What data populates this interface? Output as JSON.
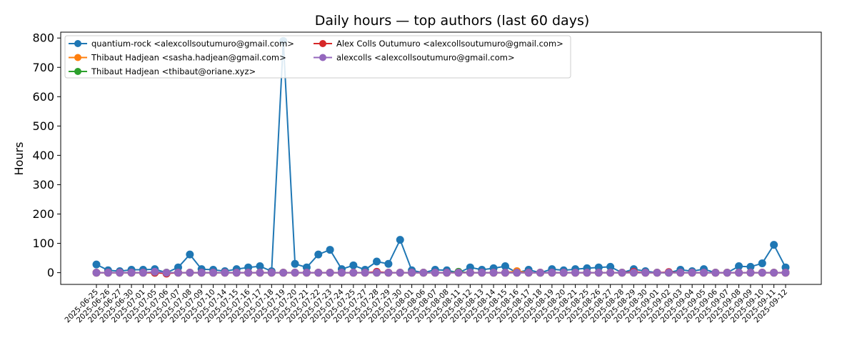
{
  "chart_data": {
    "type": "line",
    "title": "Daily hours — top authors (last 60 days)",
    "xlabel": "",
    "ylabel": "Hours",
    "ylim": [
      -40,
      820
    ],
    "yticks": [
      0,
      100,
      200,
      300,
      400,
      500,
      600,
      700,
      800
    ],
    "grid": false,
    "legend_position": "top-left",
    "legend_columns": 2,
    "x": [
      "2025-06-25",
      "2025-06-26",
      "2025-06-27",
      "2025-06-30",
      "2025-07-01",
      "2025-07-05",
      "2025-07-06",
      "2025-07-07",
      "2025-07-08",
      "2025-07-09",
      "2025-07-10",
      "2025-07-14",
      "2025-07-15",
      "2025-07-16",
      "2025-07-17",
      "2025-07-18",
      "2025-07-19",
      "2025-07-20",
      "2025-07-21",
      "2025-07-22",
      "2025-07-23",
      "2025-07-24",
      "2025-07-25",
      "2025-07-27",
      "2025-07-28",
      "2025-07-29",
      "2025-07-30",
      "2025-08-01",
      "2025-08-06",
      "2025-08-07",
      "2025-08-08",
      "2025-08-11",
      "2025-08-12",
      "2025-08-13",
      "2025-08-14",
      "2025-08-15",
      "2025-08-16",
      "2025-08-17",
      "2025-08-18",
      "2025-08-19",
      "2025-08-20",
      "2025-08-21",
      "2025-08-25",
      "2025-08-26",
      "2025-08-27",
      "2025-08-28",
      "2025-08-29",
      "2025-08-30",
      "2025-09-01",
      "2025-09-02",
      "2025-09-03",
      "2025-09-04",
      "2025-09-05",
      "2025-09-06",
      "2025-09-07",
      "2025-09-08",
      "2025-09-09",
      "2025-09-10",
      "2025-09-11",
      "2025-09-12"
    ],
    "series": [
      {
        "name": "quantium-rock <alexcollsoutumuro@gmail.com>",
        "color": "#1f77b4",
        "values": [
          28,
          8,
          5,
          10,
          10,
          12,
          0,
          18,
          62,
          12,
          10,
          5,
          12,
          18,
          22,
          5,
          790,
          30,
          18,
          62,
          78,
          12,
          25,
          10,
          38,
          30,
          112,
          8,
          0,
          10,
          8,
          0,
          18,
          10,
          15,
          22,
          0,
          10,
          0,
          12,
          8,
          12,
          15,
          18,
          20,
          0,
          12,
          5,
          0,
          0,
          10,
          5,
          12,
          0,
          0,
          22,
          20,
          32,
          95,
          18
        ]
      },
      {
        "name": "Thibaut Hadjean <sasha.hadjean@gmail.com>",
        "color": "#ff7f0e",
        "values": [
          0,
          0,
          0,
          0,
          0,
          0,
          0,
          0,
          0,
          0,
          0,
          0,
          0,
          0,
          0,
          0,
          0,
          0,
          0,
          0,
          0,
          0,
          0,
          0,
          0,
          0,
          0,
          0,
          0,
          0,
          0,
          0,
          0,
          0,
          0,
          0,
          5,
          0,
          0,
          0,
          0,
          0,
          0,
          0,
          0,
          0,
          0,
          0,
          0,
          0,
          0,
          0,
          0,
          0,
          0,
          0,
          0,
          0,
          0,
          0
        ]
      },
      {
        "name": "Thibaut Hadjean <thibaut@oriane.xyz>",
        "color": "#2ca02c",
        "values": [
          0,
          0,
          0,
          0,
          0,
          0,
          0,
          0,
          0,
          0,
          0,
          0,
          0,
          0,
          0,
          0,
          0,
          0,
          0,
          0,
          0,
          0,
          0,
          0,
          0,
          0,
          0,
          0,
          0,
          0,
          0,
          3,
          0,
          0,
          0,
          0,
          0,
          0,
          0,
          0,
          0,
          0,
          0,
          0,
          0,
          0,
          0,
          0,
          0,
          0,
          0,
          0,
          0,
          0,
          0,
          0,
          0,
          0,
          0,
          0
        ]
      },
      {
        "name": "Alex Colls Outumuro <alexcollsoutumuro@gmail.com>",
        "color": "#d62728",
        "values": [
          0,
          0,
          0,
          0,
          0,
          0,
          -3,
          0,
          0,
          0,
          0,
          0,
          0,
          0,
          0,
          0,
          0,
          0,
          0,
          0,
          0,
          0,
          0,
          0,
          3,
          0,
          0,
          0,
          0,
          0,
          0,
          0,
          0,
          0,
          0,
          0,
          0,
          0,
          0,
          0,
          0,
          0,
          0,
          0,
          0,
          0,
          3,
          0,
          0,
          2,
          0,
          0,
          0,
          0,
          0,
          0,
          0,
          0,
          0,
          0
        ]
      },
      {
        "name": "alexcolls <alexcollsoutumuro@gmail.com>",
        "color": "#9467bd",
        "values": [
          0,
          0,
          0,
          0,
          0,
          3,
          0,
          0,
          0,
          0,
          0,
          0,
          0,
          0,
          0,
          0,
          0,
          0,
          0,
          0,
          0,
          0,
          0,
          0,
          0,
          0,
          0,
          0,
          0,
          0,
          0,
          0,
          0,
          0,
          0,
          0,
          0,
          0,
          0,
          0,
          0,
          0,
          0,
          0,
          0,
          0,
          0,
          0,
          0,
          0,
          0,
          0,
          0,
          0,
          0,
          0,
          0,
          0,
          0,
          0
        ]
      }
    ]
  }
}
